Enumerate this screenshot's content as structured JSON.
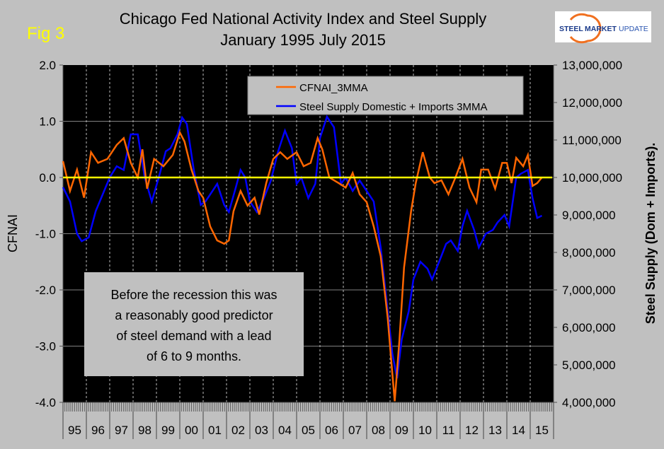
{
  "chart_data": {
    "type": "line",
    "title": "Chicago Fed National Activity Index and Steel Supply",
    "subtitle": "January 1995 July 2015",
    "figure_label": "Fig 3",
    "logo_text": "STEEL MARKET UPDATE",
    "ylabel_left": "CFNAI",
    "ylabel_right": "Steel Supply (Dom + Imports).",
    "ylim_left": [
      -4.0,
      2.0
    ],
    "ylim_right": [
      4000000,
      13000000
    ],
    "xlim": [
      1995,
      2016
    ],
    "left_ticks": [
      "2.0",
      "1.0",
      "0.0",
      "-1.0",
      "-2.0",
      "-3.0",
      "-4.0"
    ],
    "left_tick_values": [
      2,
      1,
      0,
      -1,
      -2,
      -3,
      -4
    ],
    "right_ticks": [
      "13,000,000",
      "12,000,000",
      "11,000,000",
      "10,000,000",
      "9,000,000",
      "8,000,000",
      "7,000,000",
      "6,000,000",
      "5,000,000",
      "4,000,000"
    ],
    "right_tick_values": [
      13000000,
      12000000,
      11000000,
      10000000,
      9000000,
      8000000,
      7000000,
      6000000,
      5000000,
      4000000
    ],
    "x_tick_labels": [
      "95",
      "96",
      "97",
      "98",
      "99",
      "00",
      "01",
      "02",
      "03",
      "04",
      "05",
      "06",
      "07",
      "08",
      "09",
      "10",
      "11",
      "12",
      "13",
      "14",
      "15"
    ],
    "grid": true,
    "legend_placement": "top-right",
    "reference_line": {
      "value": 0,
      "color": "#ffff00"
    },
    "annotation": [
      "Before the recession this was",
      "a reasonably good predictor",
      "of steel demand with a lead",
      "of 6 to 9 months."
    ],
    "colors": {
      "cfnai": "#ff6600",
      "steel": "#0000ff",
      "plot_bg": "#000000",
      "page_bg": "#c0c0c0",
      "fig_label": "#ffff00"
    },
    "series": [
      {
        "name": "CFNAI_3MMA",
        "axis": "left",
        "x": [
          1995.0,
          1995.3,
          1995.6,
          1995.9,
          1996.2,
          1996.5,
          1996.9,
          1997.3,
          1997.6,
          1997.9,
          1998.2,
          1998.4,
          1998.6,
          1998.9,
          1999.3,
          1999.7,
          2000.0,
          2000.2,
          2000.5,
          2000.8,
          2001.0,
          2001.3,
          2001.6,
          2001.9,
          2002.1,
          2002.3,
          2002.6,
          2002.9,
          2003.2,
          2003.4,
          2003.7,
          2004.0,
          2004.3,
          2004.6,
          2005.0,
          2005.3,
          2005.6,
          2005.9,
          2006.1,
          2006.4,
          2006.8,
          2007.1,
          2007.4,
          2007.7,
          2008.0,
          2008.3,
          2008.6,
          2008.9,
          2009.1,
          2009.2,
          2009.4,
          2009.6,
          2009.9,
          2010.1,
          2010.4,
          2010.7,
          2010.9,
          2011.2,
          2011.5,
          2011.8,
          2012.1,
          2012.4,
          2012.7,
          2012.9,
          2013.2,
          2013.5,
          2013.8,
          2014.0,
          2014.2,
          2014.4,
          2014.7,
          2014.9,
          2015.1,
          2015.3,
          2015.5
        ],
        "values": [
          0.29,
          -0.24,
          0.14,
          -0.36,
          0.45,
          0.26,
          0.33,
          0.58,
          0.7,
          0.26,
          0.0,
          0.5,
          -0.2,
          0.33,
          0.2,
          0.4,
          0.8,
          0.64,
          0.14,
          -0.24,
          -0.36,
          -0.87,
          -1.12,
          -1.18,
          -1.12,
          -0.6,
          -0.24,
          -0.5,
          -0.36,
          -0.66,
          -0.1,
          0.33,
          0.45,
          0.33,
          0.45,
          0.2,
          0.26,
          0.7,
          0.5,
          0.0,
          -0.1,
          -0.18,
          0.08,
          -0.3,
          -0.44,
          -0.87,
          -1.4,
          -2.5,
          -3.5,
          -3.98,
          -2.9,
          -1.6,
          -0.6,
          -0.1,
          0.45,
          0.0,
          -0.1,
          -0.05,
          -0.3,
          0.0,
          0.33,
          -0.18,
          -0.44,
          0.14,
          0.14,
          -0.2,
          0.26,
          0.26,
          -0.1,
          0.35,
          0.2,
          0.4,
          -0.15,
          -0.1,
          0.0
        ]
      },
      {
        "name": "Steel Supply Domestic + Imports 3MMA",
        "axis": "right",
        "x": [
          1995.0,
          1995.3,
          1995.6,
          1995.8,
          1996.1,
          1996.4,
          1996.7,
          1997.0,
          1997.3,
          1997.6,
          1997.9,
          1998.2,
          1998.5,
          1998.8,
          1999.1,
          1999.4,
          1999.6,
          1999.9,
          2000.1,
          2000.3,
          2000.6,
          2000.9,
          2001.1,
          2001.4,
          2001.6,
          2001.9,
          2002.1,
          2002.4,
          2002.6,
          2002.8,
          2003.0,
          2003.3,
          2003.6,
          2003.9,
          2004.2,
          2004.5,
          2004.8,
          2005.0,
          2005.2,
          2005.5,
          2005.8,
          2006.0,
          2006.3,
          2006.6,
          2006.9,
          2007.1,
          2007.4,
          2007.7,
          2008.0,
          2008.3,
          2008.6,
          2008.9,
          2009.1,
          2009.3,
          2009.5,
          2009.8,
          2010.0,
          2010.3,
          2010.6,
          2010.8,
          2011.1,
          2011.4,
          2011.6,
          2011.9,
          2012.1,
          2012.3,
          2012.6,
          2012.8,
          2013.1,
          2013.4,
          2013.6,
          2013.9,
          2014.1,
          2014.4,
          2014.6,
          2014.9,
          2015.1,
          2015.3,
          2015.5
        ],
        "values": [
          9740000,
          9360000,
          8500000,
          8300000,
          8400000,
          9100000,
          9550000,
          10000000,
          10300000,
          10200000,
          11150000,
          11150000,
          10000000,
          9360000,
          10000000,
          10700000,
          10780000,
          11150000,
          11600000,
          11430000,
          10200000,
          9270000,
          9360000,
          9640000,
          9830000,
          9270000,
          9080000,
          9740000,
          10200000,
          10000000,
          9360000,
          9080000,
          9450000,
          9920000,
          10680000,
          11250000,
          10780000,
          9830000,
          10000000,
          9450000,
          9830000,
          11050000,
          11620000,
          11340000,
          9830000,
          10000000,
          9640000,
          9920000,
          9640000,
          9360000,
          8130000,
          6430000,
          5300000,
          4640000,
          5680000,
          6430000,
          7280000,
          7750000,
          7570000,
          7280000,
          7750000,
          8230000,
          8320000,
          8040000,
          8700000,
          9110000,
          8600000,
          8130000,
          8500000,
          8600000,
          8800000,
          9000000,
          8700000,
          10000000,
          10100000,
          10200000,
          9450000,
          8920000,
          8980000
        ]
      }
    ]
  }
}
